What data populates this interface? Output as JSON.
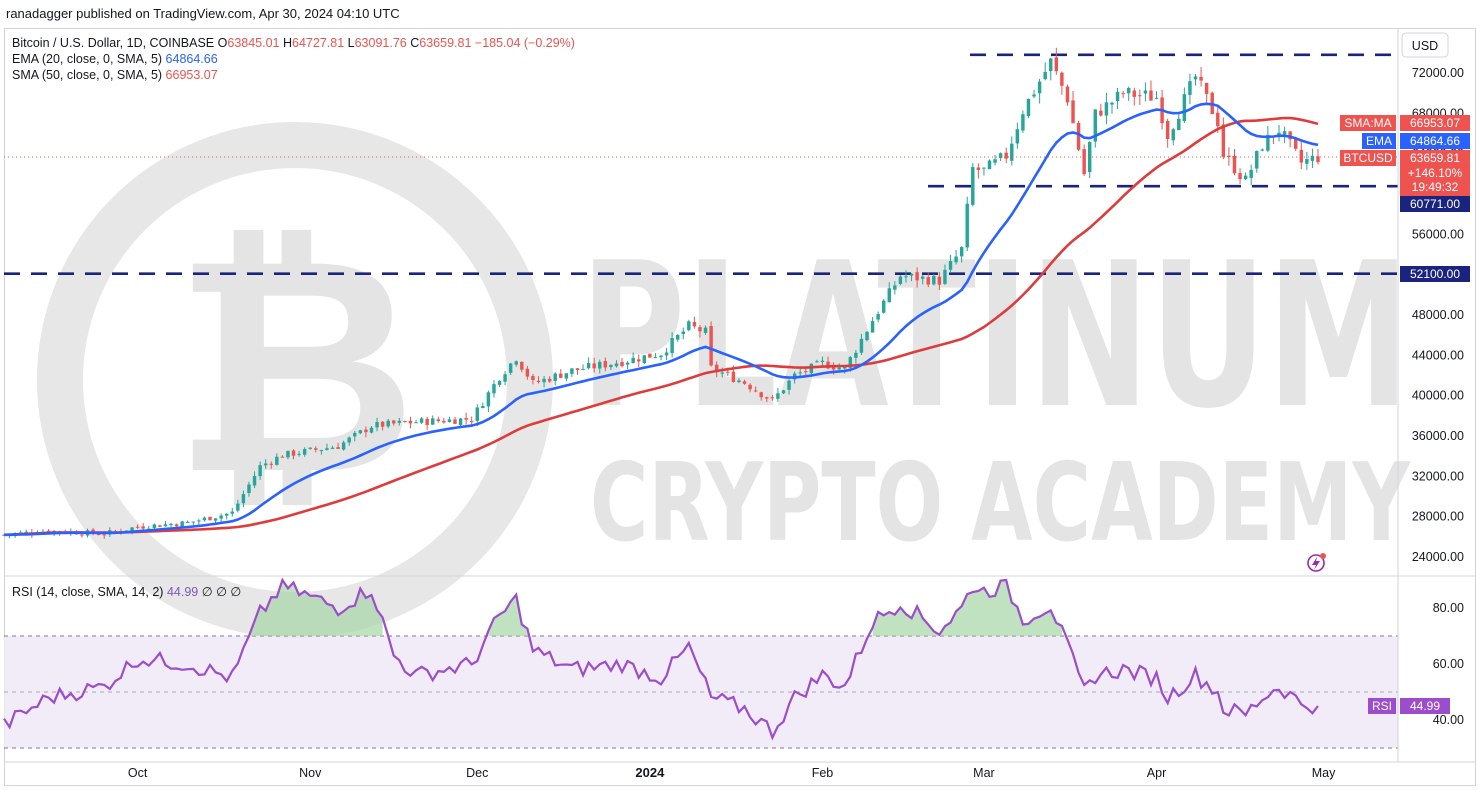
{
  "header": {
    "published": "ranadagger published on TradingView.com, Apr 30, 2024 04:10 UTC"
  },
  "legend": {
    "symbol": "Bitcoin / U.S. Dollar, 1D, COINBASE",
    "o_label": "O",
    "o_value": "63845.01",
    "h_label": "H",
    "h_value": "64727.81",
    "l_label": "L",
    "l_value": "63091.76",
    "c_label": "C",
    "c_value": "63659.81",
    "change": "−185.04 (−0.29%)",
    "ema_label": "EMA (20, close, 0, SMA, 5)",
    "ema_value": "64864.66",
    "sma_label": "SMA (50, close, 0, SMA, 5)",
    "sma_value": "66953.07",
    "rsi_label": "RSI (14, close, SMA, 14, 2)",
    "rsi_value": "44.99",
    "rsi_extra": "∅ ∅ ∅"
  },
  "watermark": {
    "line1": "PLATINUM",
    "line2": "CRYPTO ACADEMY"
  },
  "price_axis": {
    "currency": "USD",
    "ticks": [
      "72000.00",
      "68000.00",
      "64000.00",
      "60000.00",
      "56000.00",
      "52000.00",
      "48000.00",
      "44000.00",
      "40000.00",
      "36000.00",
      "32000.00",
      "28000.00",
      "24000.00"
    ]
  },
  "rsi_axis": {
    "ticks": [
      "80.00",
      "60.00",
      "40.00"
    ]
  },
  "time_axis": {
    "labels": [
      "Oct",
      "Nov",
      "Dec",
      "2024",
      "Feb",
      "Mar",
      "Apr",
      "May"
    ]
  },
  "tags": {
    "sma_name": "SMA:MA",
    "sma_value": "66953.07",
    "ema_name": "EMA",
    "ema_value": "64864.66",
    "sym_name": "BTCUSD",
    "sym_value": "63659.81",
    "sym_pct": "+146.10%",
    "sym_timer": "19:49:32",
    "support1": "60771.00",
    "support2": "52100.00",
    "rsi_name": "RSI",
    "rsi_value": "44.99"
  },
  "colors": {
    "up": "#26a69a",
    "down": "#ef5350",
    "ema": "#2962ff",
    "sma": "#e03b3b",
    "rsi": "#9c4dcc",
    "level_line": "#1a237e",
    "rsi_band": "#ede7f6"
  },
  "chart_data": [
    {
      "type": "candlestick",
      "title": "Bitcoin / U.S. Dollar, 1D, COINBASE",
      "x_range": [
        "2023-09-07",
        "2024-04-30"
      ],
      "ylim": [
        22000,
        75000
      ],
      "close_path": [
        [
          "2023-09-07",
          26200
        ],
        [
          "2023-09-15",
          26600
        ],
        [
          "2023-09-25",
          26300
        ],
        [
          "2023-10-01",
          27000
        ],
        [
          "2023-10-10",
          27400
        ],
        [
          "2023-10-18",
          28400
        ],
        [
          "2023-10-23",
          33000
        ],
        [
          "2023-10-27",
          34100
        ],
        [
          "2023-11-06",
          35000
        ],
        [
          "2023-11-12",
          37000
        ],
        [
          "2023-11-20",
          37400
        ],
        [
          "2023-11-30",
          37700
        ],
        [
          "2023-12-05",
          41900
        ],
        [
          "2023-12-08",
          43800
        ],
        [
          "2023-12-11",
          41200
        ],
        [
          "2023-12-18",
          42500
        ],
        [
          "2023-12-27",
          43400
        ],
        [
          "2024-01-03",
          44200
        ],
        [
          "2024-01-08",
          46900
        ],
        [
          "2024-01-11",
          46300
        ],
        [
          "2024-01-12",
          42700
        ],
        [
          "2024-01-18",
          41300
        ],
        [
          "2024-01-23",
          39500
        ],
        [
          "2024-01-27",
          42000
        ],
        [
          "2024-02-01",
          43200
        ],
        [
          "2024-02-05",
          42700
        ],
        [
          "2024-02-10",
          47500
        ],
        [
          "2024-02-15",
          51900
        ],
        [
          "2024-02-22",
          51400
        ],
        [
          "2024-02-26",
          54500
        ],
        [
          "2024-02-28",
          62500
        ],
        [
          "2024-03-01",
          62300
        ],
        [
          "2024-03-05",
          63800
        ],
        [
          "2024-03-08",
          68300
        ],
        [
          "2024-03-13",
          73100
        ],
        [
          "2024-03-16",
          69500
        ],
        [
          "2024-03-19",
          62000
        ],
        [
          "2024-03-21",
          67900
        ],
        [
          "2024-03-26",
          70000
        ],
        [
          "2024-04-01",
          69600
        ],
        [
          "2024-04-03",
          65900
        ],
        [
          "2024-04-08",
          71600
        ],
        [
          "2024-04-12",
          67200
        ],
        [
          "2024-04-13",
          63900
        ],
        [
          "2024-04-17",
          61300
        ],
        [
          "2024-04-20",
          64900
        ],
        [
          "2024-04-23",
          66400
        ],
        [
          "2024-04-27",
          63100
        ],
        [
          "2024-04-30",
          63659.81
        ]
      ],
      "ema20": {
        "name": "EMA (20, close, 0, SMA, 5)",
        "last": 64864.66
      },
      "sma50": {
        "name": "SMA (50, close, 0, SMA, 5)",
        "last": 66953.07
      },
      "levels": [
        73800,
        60771,
        52100
      ]
    },
    {
      "type": "line",
      "title": "RSI (14, close, SMA, 14, 2)",
      "ylim": [
        25,
        92
      ],
      "bands": [
        70,
        30
      ],
      "values_by_date": [
        [
          "2023-09-07",
          38
        ],
        [
          "2023-09-15",
          48
        ],
        [
          "2023-09-25",
          52
        ],
        [
          "2023-10-01",
          62
        ],
        [
          "2023-10-10",
          60
        ],
        [
          "2023-10-18",
          55
        ],
        [
          "2023-10-23",
          78
        ],
        [
          "2023-10-27",
          88
        ],
        [
          "2023-11-06",
          80
        ],
        [
          "2023-11-12",
          87
        ],
        [
          "2023-11-16",
          63
        ],
        [
          "2023-11-20",
          56
        ],
        [
          "2023-11-30",
          60
        ],
        [
          "2023-12-05",
          77
        ],
        [
          "2023-12-08",
          83
        ],
        [
          "2023-12-11",
          65
        ],
        [
          "2023-12-18",
          58
        ],
        [
          "2023-12-27",
          60
        ],
        [
          "2024-01-03",
          55
        ],
        [
          "2024-01-08",
          66
        ],
        [
          "2024-01-12",
          48
        ],
        [
          "2024-01-18",
          44
        ],
        [
          "2024-01-23",
          36
        ],
        [
          "2024-01-27",
          48
        ],
        [
          "2024-02-01",
          56
        ],
        [
          "2024-02-05",
          52
        ],
        [
          "2024-02-10",
          75
        ],
        [
          "2024-02-15",
          82
        ],
        [
          "2024-02-22",
          72
        ],
        [
          "2024-02-26",
          80
        ],
        [
          "2024-02-28",
          88
        ],
        [
          "2024-03-01",
          86
        ],
        [
          "2024-03-05",
          88
        ],
        [
          "2024-03-08",
          76
        ],
        [
          "2024-03-13",
          81
        ],
        [
          "2024-03-16",
          66
        ],
        [
          "2024-03-19",
          50
        ],
        [
          "2024-03-21",
          56
        ],
        [
          "2024-03-26",
          58
        ],
        [
          "2024-04-01",
          55
        ],
        [
          "2024-04-03",
          48
        ],
        [
          "2024-04-08",
          56
        ],
        [
          "2024-04-12",
          50
        ],
        [
          "2024-04-13",
          44
        ],
        [
          "2024-04-17",
          42
        ],
        [
          "2024-04-20",
          48
        ],
        [
          "2024-04-23",
          52
        ],
        [
          "2024-04-27",
          46
        ],
        [
          "2024-04-30",
          44.99
        ]
      ]
    }
  ]
}
